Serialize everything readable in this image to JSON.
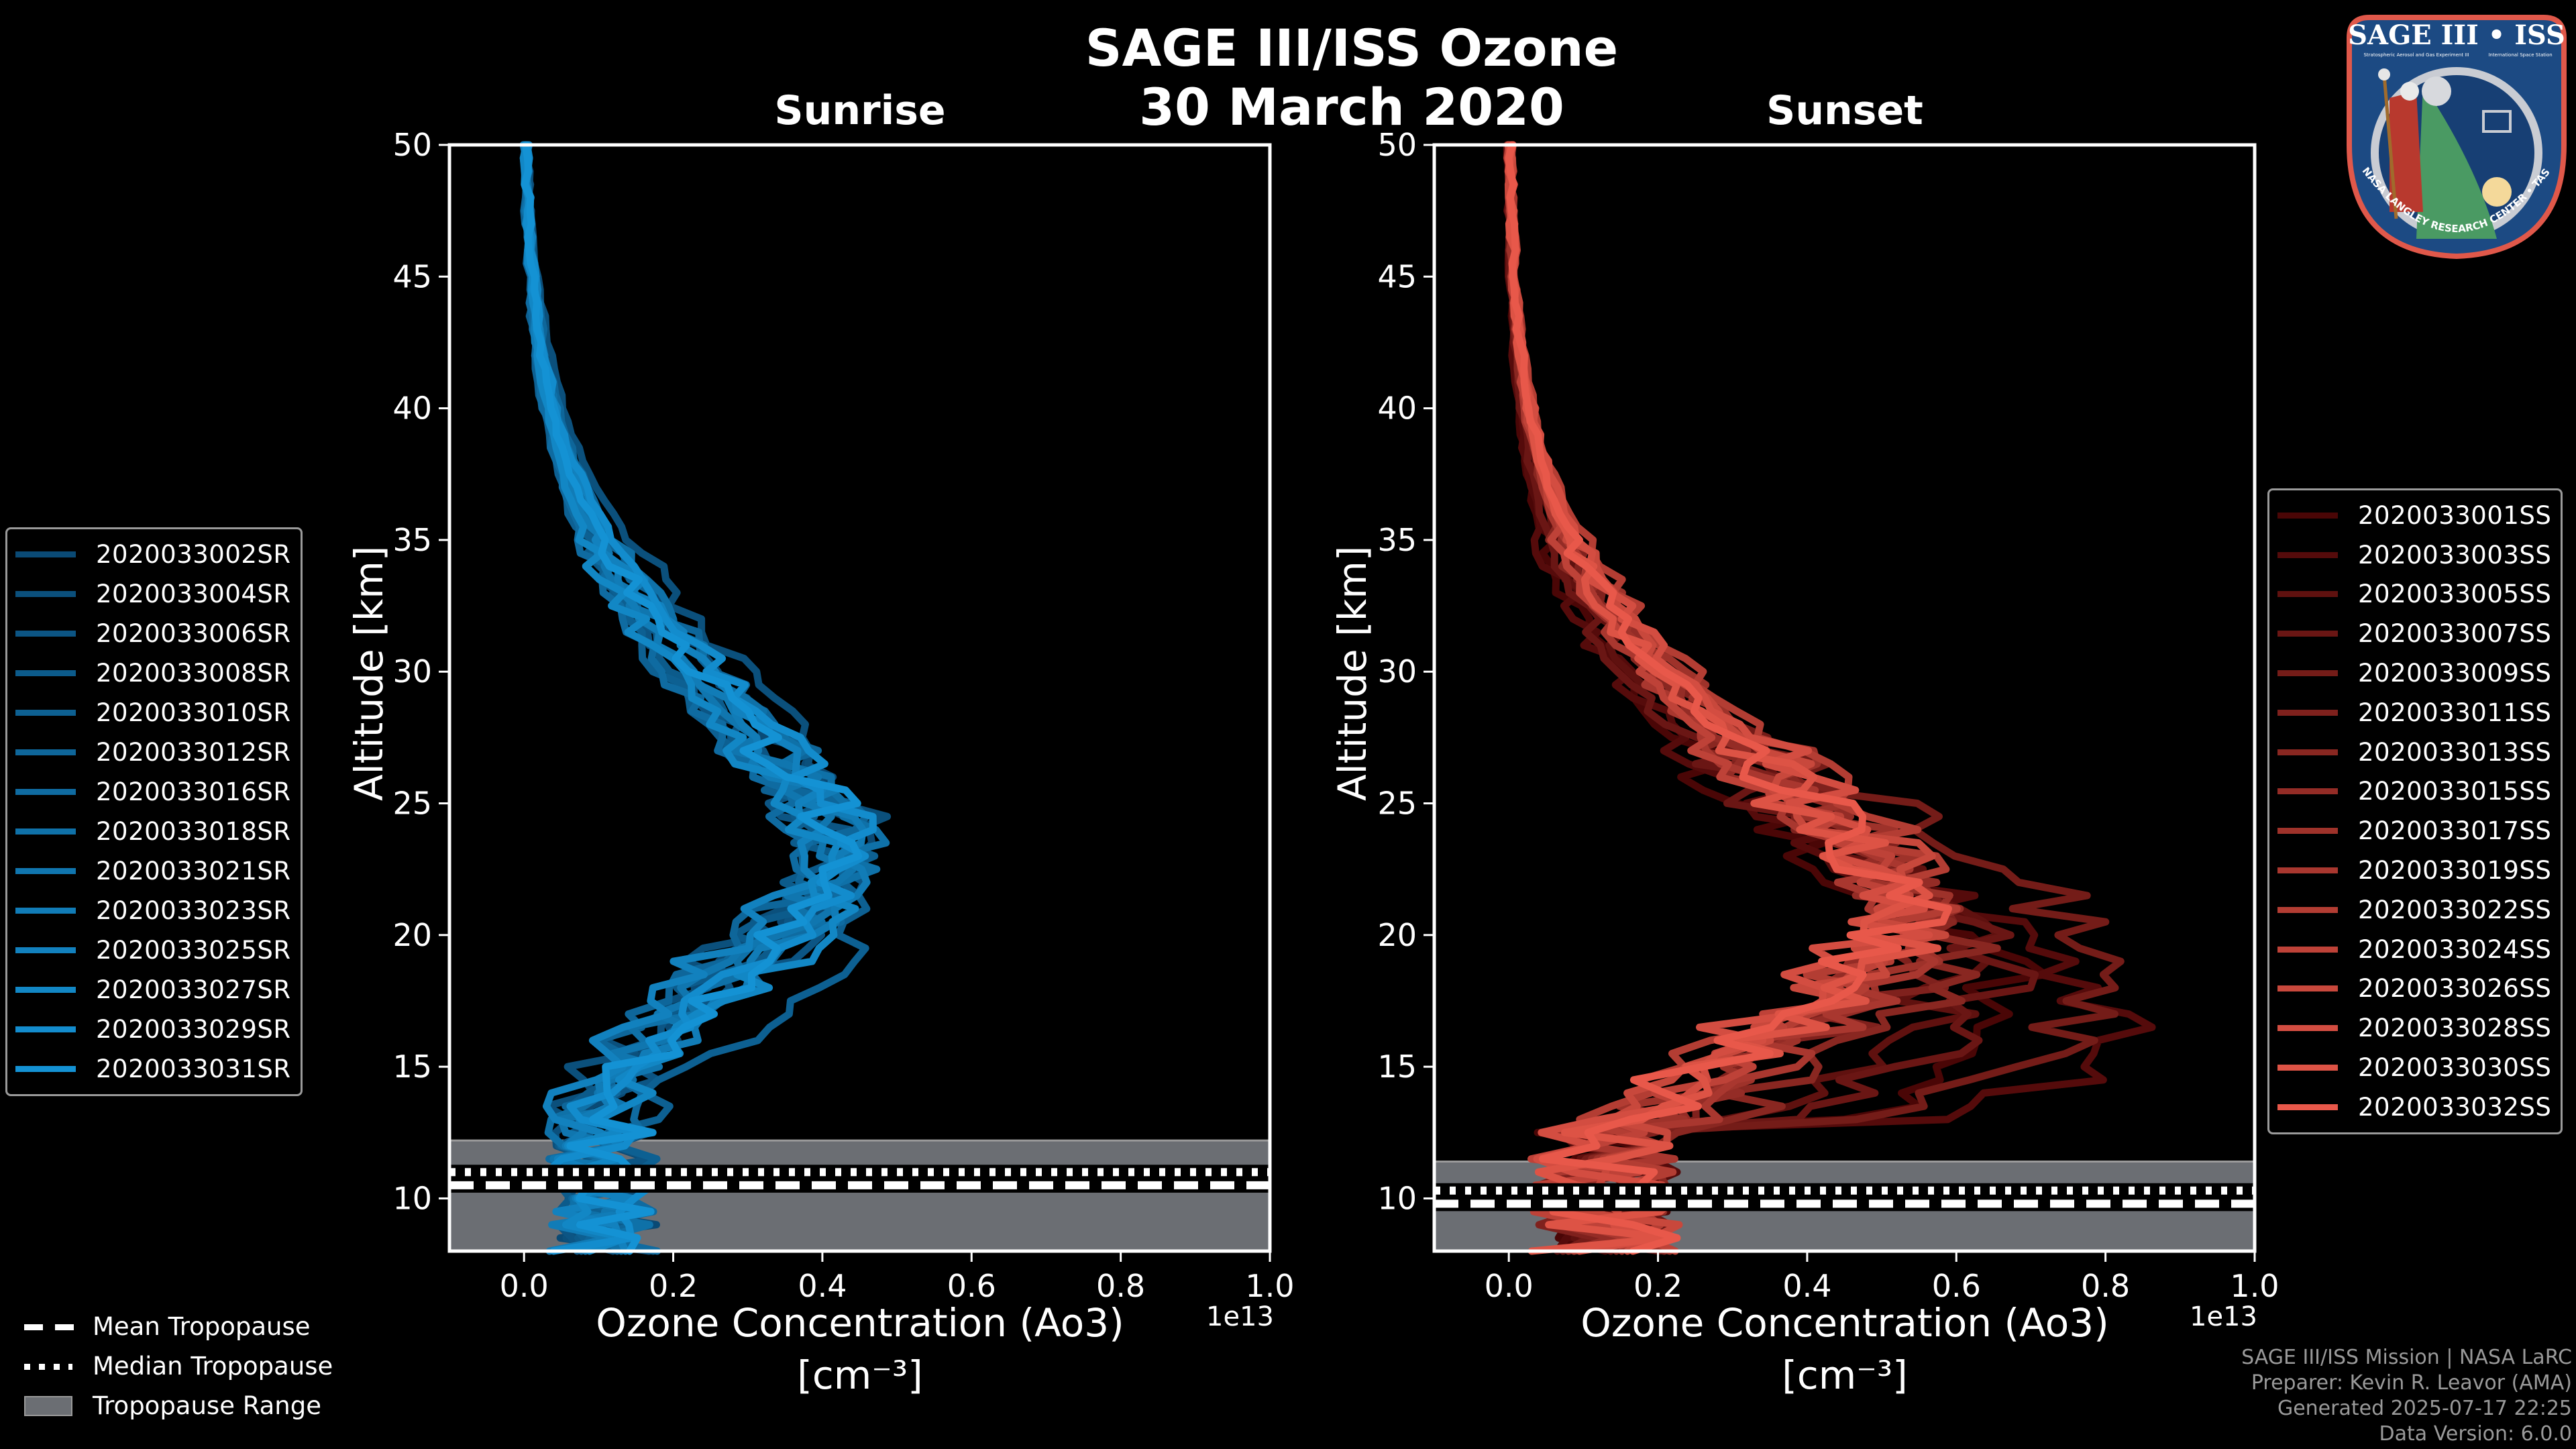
{
  "title_line1": "SAGE III/ISS Ozone",
  "title_line2": "30 March 2020",
  "footer": [
    "SAGE III/ISS Mission | NASA LaRC",
    "Preparer: Kevin R. Leavor (AMA)",
    "Generated 2025-07-17 22:25",
    "Data Version: 6.0.0"
  ],
  "logo": {
    "title": "SAGE III • ISS",
    "subtitle_left": "Stratospheric Aerosol and Gas Experiment III",
    "subtitle_right": "International Space Station",
    "ring_text": "BALL • NASA LANGLEY RESEARCH CENTER • TAS-I • ESA"
  },
  "tropopause_legend": [
    {
      "label": "Mean Tropopause",
      "style": "dashed"
    },
    {
      "label": "Median Tropopause",
      "style": "dotted"
    },
    {
      "label": "Tropopause Range",
      "style": "band"
    }
  ],
  "colors": {
    "background": "#000000",
    "tropopause_band": "#6b6e73",
    "sunrise_dark": "#0a4a75",
    "sunrise_light": "#1492d4",
    "sunset_dark": "#4a0606",
    "sunset_light": "#e8584a"
  },
  "chart_data": [
    {
      "type": "line",
      "title": "Sunrise",
      "xlabel": "Ozone Concentration (Ao3)",
      "xlabel_units": "[cm⁻³]",
      "x_multiplier": "1e13",
      "ylabel": "Altitude [km]",
      "xlim": [
        -0.1,
        1.0
      ],
      "ylim": [
        8,
        50
      ],
      "xticks": [
        "0.0",
        "0.2",
        "0.4",
        "0.6",
        "0.8",
        "1.0"
      ],
      "yticks": [
        "10",
        "15",
        "20",
        "25",
        "30",
        "35",
        "40",
        "45",
        "50"
      ],
      "grid": false,
      "legend_position": "left-outside",
      "tropopause": {
        "mean": 10.5,
        "median": 11.0,
        "range": [
          8.0,
          12.2
        ]
      },
      "series": [
        {
          "name": "2020033002SR",
          "peak": 0.44,
          "peak_alt": 23.5,
          "seed": 1
        },
        {
          "name": "2020033004SR",
          "peak": 0.46,
          "peak_alt": 24.5,
          "seed": 2
        },
        {
          "name": "2020033006SR",
          "peak": 0.42,
          "peak_alt": 22.5,
          "seed": 3
        },
        {
          "name": "2020033008SR",
          "peak": 0.4,
          "peak_alt": 23.0,
          "seed": 4
        },
        {
          "name": "2020033010SR",
          "peak": 0.47,
          "peak_alt": 21.0,
          "seed": 5
        },
        {
          "name": "2020033012SR",
          "peak": 0.43,
          "peak_alt": 24.0,
          "seed": 6
        },
        {
          "name": "2020033016SR",
          "peak": 0.41,
          "peak_alt": 22.0,
          "seed": 7
        },
        {
          "name": "2020033018SR",
          "peak": 0.45,
          "peak_alt": 23.5,
          "seed": 8
        },
        {
          "name": "2020033021SR",
          "peak": 0.42,
          "peak_alt": 23.0,
          "seed": 9
        },
        {
          "name": "2020033023SR",
          "peak": 0.44,
          "peak_alt": 22.5,
          "seed": 10
        },
        {
          "name": "2020033025SR",
          "peak": 0.4,
          "peak_alt": 24.0,
          "seed": 11
        },
        {
          "name": "2020033027SR",
          "peak": 0.43,
          "peak_alt": 22.0,
          "seed": 12
        },
        {
          "name": "2020033029SR",
          "peak": 0.46,
          "peak_alt": 23.5,
          "seed": 13
        },
        {
          "name": "2020033031SR",
          "peak": 0.44,
          "peak_alt": 23.0,
          "seed": 14
        }
      ]
    },
    {
      "type": "line",
      "title": "Sunset",
      "xlabel": "Ozone Concentration (Ao3)",
      "xlabel_units": "[cm⁻³]",
      "x_multiplier": "1e13",
      "ylabel": "Altitude [km]",
      "xlim": [
        -0.1,
        1.0
      ],
      "ylim": [
        8,
        50
      ],
      "xticks": [
        "0.0",
        "0.2",
        "0.4",
        "0.6",
        "0.8",
        "1.0"
      ],
      "yticks": [
        "10",
        "15",
        "20",
        "25",
        "30",
        "35",
        "40",
        "45",
        "50"
      ],
      "grid": false,
      "legend_position": "right-outside",
      "tropopause": {
        "mean": 9.8,
        "median": 10.3,
        "range": [
          8.0,
          11.4
        ]
      },
      "series": [
        {
          "name": "2020033001SS",
          "peak": 0.7,
          "peak_alt": 17.0,
          "seed": 21
        },
        {
          "name": "2020033003SS",
          "peak": 0.82,
          "peak_alt": 16.5,
          "seed": 22
        },
        {
          "name": "2020033005SS",
          "peak": 0.62,
          "peak_alt": 19.0,
          "seed": 23
        },
        {
          "name": "2020033007SS",
          "peak": 0.66,
          "peak_alt": 18.0,
          "seed": 24
        },
        {
          "name": "2020033009SS",
          "peak": 0.84,
          "peak_alt": 18.5,
          "seed": 25
        },
        {
          "name": "2020033011SS",
          "peak": 0.58,
          "peak_alt": 20.0,
          "seed": 26
        },
        {
          "name": "2020033013SS",
          "peak": 0.6,
          "peak_alt": 19.5,
          "seed": 27
        },
        {
          "name": "2020033015SS",
          "peak": 0.55,
          "peak_alt": 20.5,
          "seed": 28
        },
        {
          "name": "2020033017SS",
          "peak": 0.57,
          "peak_alt": 21.0,
          "seed": 29
        },
        {
          "name": "2020033019SS",
          "peak": 0.54,
          "peak_alt": 20.0,
          "seed": 30
        },
        {
          "name": "2020033022SS",
          "peak": 0.56,
          "peak_alt": 21.5,
          "seed": 31
        },
        {
          "name": "2020033024SS",
          "peak": 0.52,
          "peak_alt": 20.5,
          "seed": 32
        },
        {
          "name": "2020033026SS",
          "peak": 0.55,
          "peak_alt": 21.0,
          "seed": 33
        },
        {
          "name": "2020033028SS",
          "peak": 0.53,
          "peak_alt": 21.5,
          "seed": 34
        },
        {
          "name": "2020033030SS",
          "peak": 0.54,
          "peak_alt": 20.5,
          "seed": 35
        },
        {
          "name": "2020033032SS",
          "peak": 0.52,
          "peak_alt": 21.0,
          "seed": 36
        }
      ]
    }
  ]
}
